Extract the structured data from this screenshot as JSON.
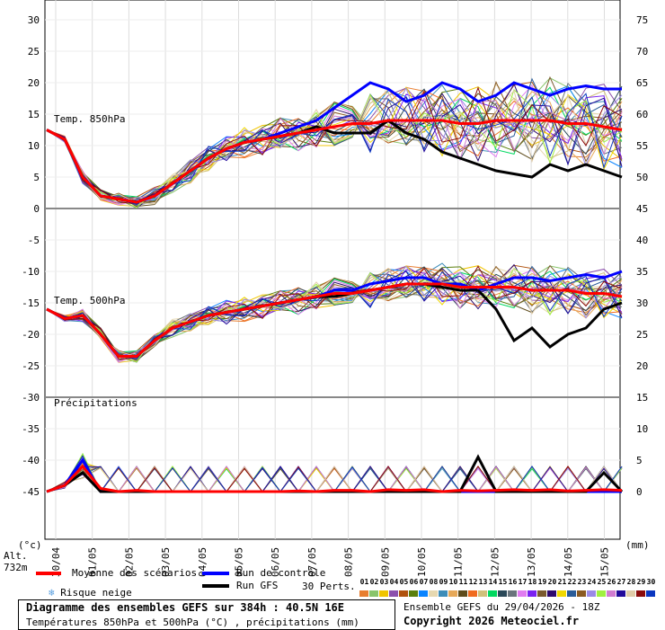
{
  "chart_data": {
    "type": "line",
    "title": "Diagramme des ensembles GEFS sur 384h : 40.5N 16E",
    "subtitle": "Températures 850hPa et 500hPa (°C) , précipitations (mm)",
    "left_unit": "(°c)",
    "right_unit": "(mm)",
    "altitude": "Alt. 732m",
    "left_ticks": [
      30,
      25,
      20,
      15,
      10,
      5,
      0,
      -5,
      -10,
      -15,
      -20,
      -25,
      -30,
      -35,
      -40,
      -45
    ],
    "right_ticks": [
      75,
      70,
      65,
      60,
      55,
      50,
      45,
      40,
      35,
      30,
      25,
      20,
      15,
      10,
      5,
      0
    ],
    "ylim": [
      -45,
      30
    ],
    "x_labels": [
      "30/04",
      "01/05",
      "02/05",
      "03/05",
      "04/05",
      "05/05",
      "06/05",
      "07/05",
      "08/05",
      "09/05",
      "10/05",
      "11/05",
      "12/05",
      "13/05",
      "14/05",
      "15/05"
    ],
    "x_step_hours": 12,
    "panel_labels": {
      "t850": "Temp. 850hPa",
      "t500": "Temp. 500hPa",
      "precip": "Précipitations"
    },
    "series": [
      {
        "name": "Moyenne des scénarios",
        "panel": "t850",
        "color": "#ff0000",
        "values": [
          12.5,
          11,
          5,
          2,
          1.5,
          1,
          2,
          4,
          6,
          8,
          9.5,
          10.5,
          11,
          11.5,
          12,
          12.5,
          13,
          13.5,
          13.5,
          14,
          14,
          14,
          14,
          13.5,
          13.5,
          14,
          14,
          14,
          14,
          13.5,
          13.5,
          13,
          12.5
        ]
      },
      {
        "name": "Run de contrôle",
        "panel": "t850",
        "color": "#0000ff",
        "values": [
          12.5,
          11,
          5,
          2,
          1.5,
          1,
          2,
          4,
          6,
          8,
          9.5,
          10.5,
          11,
          12,
          13,
          14,
          16,
          18,
          20,
          19,
          17,
          18,
          20,
          19,
          17,
          18,
          20,
          19,
          18,
          19,
          19.5,
          19,
          19
        ]
      },
      {
        "name": "Run GFS",
        "panel": "t850",
        "color": "#000000",
        "values": [
          12.5,
          11,
          5,
          2,
          1.5,
          1,
          2,
          4,
          6,
          8,
          9.5,
          10.5,
          11,
          11.5,
          12,
          13,
          12,
          12,
          12,
          14,
          12,
          11,
          9,
          8,
          7,
          6,
          5.5,
          5,
          7,
          6,
          7,
          6,
          5
        ]
      },
      {
        "name": "Moyenne des scénarios",
        "panel": "t500",
        "color": "#ff0000",
        "values": [
          -16,
          -17.5,
          -17,
          -20,
          -23.5,
          -23.5,
          -21,
          -19,
          -18,
          -17,
          -16.5,
          -16,
          -15.5,
          -15,
          -14.5,
          -14,
          -13.5,
          -13.5,
          -13,
          -12.5,
          -12,
          -12,
          -12,
          -12.5,
          -12.5,
          -12.5,
          -12.5,
          -13,
          -13,
          -13,
          -13.5,
          -13.5,
          -14
        ]
      },
      {
        "name": "Run de contrôle",
        "panel": "t500",
        "color": "#0000ff",
        "values": [
          -16,
          -17.5,
          -17,
          -20,
          -23.5,
          -23.5,
          -21,
          -19,
          -18,
          -17,
          -16.5,
          -16,
          -15.5,
          -15,
          -14.5,
          -14,
          -13,
          -13,
          -12,
          -11.5,
          -11,
          -11,
          -12,
          -12,
          -13,
          -12,
          -11,
          -11,
          -11.5,
          -11,
          -10.5,
          -11,
          -10
        ]
      },
      {
        "name": "Run GFS",
        "panel": "t500",
        "color": "#000000",
        "values": [
          -16,
          -17.5,
          -17,
          -20,
          -23.5,
          -23.5,
          -21,
          -19,
          -18,
          -17,
          -16.5,
          -16,
          -15.5,
          -15,
          -14.5,
          -14,
          -14,
          -13.5,
          -13,
          -12.5,
          -12,
          -12,
          -12.5,
          -13,
          -13,
          -16,
          -21,
          -19,
          -22,
          -20,
          -19,
          -16,
          -15
        ]
      },
      {
        "name": "Moyenne des scénarios",
        "panel": "precip",
        "color": "#ff0000",
        "values": [
          0,
          1,
          4,
          0.5,
          0,
          0.2,
          0,
          0,
          0,
          0,
          0,
          0,
          0,
          0,
          0.1,
          0,
          0.2,
          0.2,
          0,
          0.3,
          0.2,
          0.3,
          0,
          0.2,
          0.1,
          0.2,
          0.3,
          0.2,
          0.3,
          0.1,
          0.2,
          0.3,
          0.2
        ]
      },
      {
        "name": "Run de contrôle",
        "panel": "precip",
        "color": "#0000ff",
        "values": [
          0,
          1,
          5,
          0,
          0,
          0,
          0,
          0,
          0,
          0,
          0,
          0,
          0,
          0,
          0,
          0,
          0,
          0,
          0,
          0,
          0,
          0,
          0,
          0,
          0,
          0,
          0,
          0,
          0,
          0,
          0,
          0,
          0
        ]
      },
      {
        "name": "Run GFS",
        "panel": "precip",
        "color": "#000000",
        "values": [
          0,
          1,
          3,
          0,
          0,
          0,
          0,
          0,
          0,
          0,
          0,
          0,
          0,
          0,
          0,
          0,
          0,
          0,
          0,
          0,
          0,
          0,
          0,
          0,
          5.5,
          0,
          0,
          0,
          0,
          0,
          0,
          3,
          0
        ]
      }
    ],
    "perturbation_spread": {
      "t850": [
        0,
        0.5,
        1,
        1,
        1,
        1,
        1.5,
        1.5,
        2,
        2,
        2,
        2.5,
        2.5,
        3,
        3,
        3.5,
        4,
        4.5,
        5,
        5,
        5.5,
        5.5,
        6,
        6,
        6,
        6.5,
        6.5,
        7,
        7,
        7,
        7,
        7,
        7
      ],
      "t500": [
        0,
        0.5,
        1,
        1,
        1,
        1,
        1,
        1.5,
        1.5,
        1.5,
        2,
        2,
        2,
        2,
        2.5,
        2.5,
        2.5,
        3,
        3,
        3,
        3,
        3,
        3.5,
        3.5,
        3.5,
        3.5,
        4,
        4,
        4,
        4,
        4,
        4,
        4
      ]
    }
  },
  "legend": {
    "mean": "Moyenne des scénarios",
    "control": "Run de contrôle",
    "gfs": "Run GFS",
    "snow": "Risque neige",
    "perts_label": "30 Perts.",
    "perts": [
      "01",
      "02",
      "03",
      "04",
      "05",
      "06",
      "07",
      "08",
      "09",
      "10",
      "11",
      "12",
      "13",
      "14",
      "15",
      "16",
      "17",
      "18",
      "19",
      "20",
      "21",
      "22",
      "23",
      "24",
      "25",
      "26",
      "27",
      "28",
      "29",
      "30"
    ],
    "pert_colors": [
      "#e87e30",
      "#88c46a",
      "#f0c400",
      "#8c4fac",
      "#b0520e",
      "#5a7f0c",
      "#0a84ff",
      "#e6d8b0",
      "#3c8cb8",
      "#e6a858",
      "#5e4c1c",
      "#f06a1e",
      "#d0c07a",
      "#00d860",
      "#2a4858",
      "#6a747c",
      "#e07cf0",
      "#7a22f0",
      "#7a5a2e",
      "#2e0a6e",
      "#f0d800",
      "#2a5c98",
      "#8a5a22",
      "#9a8ae6",
      "#a0f040",
      "#d07cd0",
      "#220a9a",
      "#e0cca8",
      "#8a0a0a",
      "#0a36c0"
    ]
  },
  "footer": {
    "run": "Ensemble GEFS du 29/04/2026 - 18Z",
    "copyright": "Copyright 2026 Meteociel.fr"
  }
}
